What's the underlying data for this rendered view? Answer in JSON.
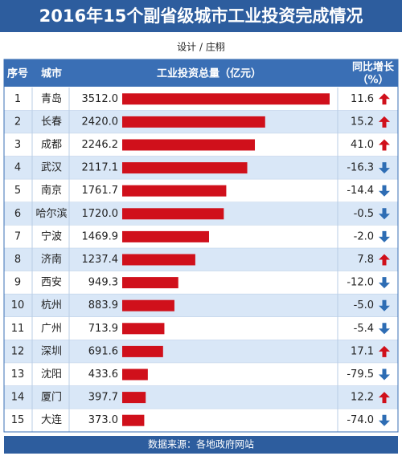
{
  "chart_data": {
    "type": "bar",
    "title": "2016年15个副省级城市工业投资完成情况",
    "subtitle": "设计 / 庄栩",
    "source": "数据来源：各地政府网站",
    "columns": {
      "rank": "序号",
      "city": "城市",
      "investment": "工业投资总量（亿元）",
      "growth": [
        "同比增长",
        "（%）"
      ]
    },
    "ranks": [
      1,
      2,
      3,
      4,
      5,
      6,
      7,
      8,
      9,
      10,
      11,
      12,
      13,
      14,
      15
    ],
    "categories": [
      "青岛",
      "长春",
      "成都",
      "武汉",
      "南京",
      "哈尔滨",
      "宁波",
      "济南",
      "西安",
      "杭州",
      "广州",
      "深圳",
      "沈阳",
      "厦门",
      "大连"
    ],
    "values": [
      3512.0,
      2420.0,
      2246.2,
      2117.1,
      1761.7,
      1720.0,
      1469.9,
      1237.4,
      949.3,
      883.9,
      713.9,
      691.6,
      433.6,
      397.7,
      373.0
    ],
    "value_labels": [
      "3512.0",
      "2420.0",
      "2246.2",
      "2117.1",
      "1761.7",
      "1720.0",
      "1469.9",
      "1237.4",
      "949.3",
      "883.9",
      "713.9",
      "691.6",
      "433.6",
      "397.7",
      "373.0"
    ],
    "color": "#d0101b",
    "growth": [
      11.6,
      15.2,
      41.0,
      -16.3,
      -14.4,
      -0.5,
      -2.0,
      7.8,
      -12.0,
      -5.0,
      -5.4,
      17.1,
      -79.5,
      12.2,
      -74.0
    ],
    "growth_labels": [
      "11.6",
      "15.2",
      "41.0",
      "-16.3",
      "-14.4",
      "-0.5",
      "-2.0",
      "7.8",
      "-12.0",
      "-5.0",
      "-5.4",
      "17.1",
      "-79.5",
      "12.2",
      "-74.0"
    ],
    "up_color": "#d0101b",
    "down_color": "#2e6db4"
  }
}
